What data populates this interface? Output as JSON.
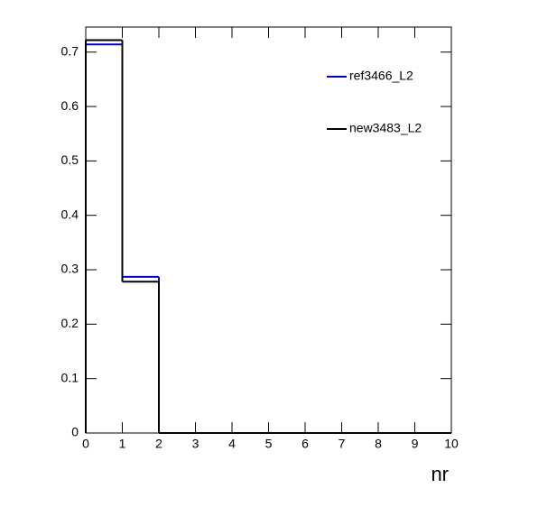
{
  "chart_data": {
    "type": "histogram",
    "x_label": "nr",
    "bins": [
      0,
      1,
      2,
      3,
      4,
      5,
      6,
      7,
      8,
      9,
      10
    ],
    "series": [
      {
        "name": "ref3466_L2",
        "color": "#0000cc",
        "values": [
          0.714,
          0.287,
          0,
          0,
          0,
          0,
          0,
          0,
          0,
          0
        ]
      },
      {
        "name": "new3483_L2",
        "color": "#000000",
        "values": [
          0.722,
          0.278,
          0,
          0,
          0,
          0,
          0,
          0,
          0,
          0
        ]
      }
    ],
    "xlim": [
      0,
      10
    ],
    "xticks": [
      0,
      1,
      2,
      3,
      4,
      5,
      6,
      7,
      8,
      9,
      10
    ],
    "ylim": [
      0,
      0.746
    ],
    "yticks": [
      0,
      0.1,
      0.2,
      0.3,
      0.4,
      0.5,
      0.6,
      0.7
    ],
    "legend": "upper-right"
  }
}
